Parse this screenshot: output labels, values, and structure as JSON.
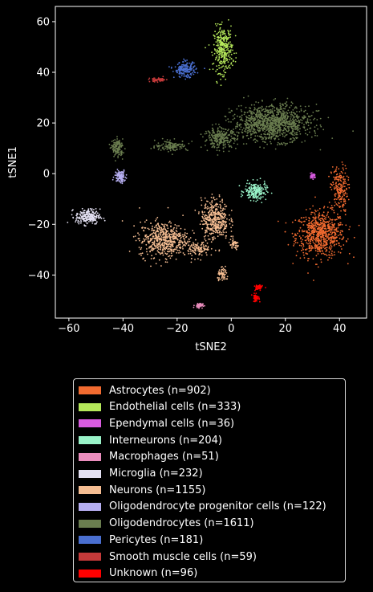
{
  "chart_data": {
    "type": "scatter",
    "xlabel": "tSNE2",
    "ylabel": "tSNE1",
    "xlim": [
      -65,
      50
    ],
    "ylim": [
      -57,
      66
    ],
    "xticks": [
      -60,
      -40,
      -20,
      0,
      20,
      40
    ],
    "yticks": [
      -40,
      -20,
      0,
      20,
      40,
      60
    ],
    "xtick_labels": [
      "−60",
      "−40",
      "−20",
      "0",
      "20",
      "40"
    ],
    "ytick_labels": [
      "−40",
      "−20",
      "0",
      "20",
      "40",
      "60"
    ],
    "grid": false,
    "legend_placement": "below",
    "series": [
      {
        "name": "Astrocytes (n=902)",
        "color": "#f26b30",
        "clusters": [
          {
            "cx": 33,
            "cy": -24,
            "rx": 9,
            "ry": 9,
            "n": 700
          },
          {
            "cx": 40,
            "cy": -6,
            "rx": 3,
            "ry": 9,
            "n": 200
          }
        ]
      },
      {
        "name": "Endothelial cells (n=333)",
        "color": "#b5e85a",
        "clusters": [
          {
            "cx": -3,
            "cy": 49,
            "rx": 3.5,
            "ry": 9,
            "n": 330
          }
        ]
      },
      {
        "name": "Ependymal cells (n=36)",
        "color": "#d95be0",
        "clusters": [
          {
            "cx": 30,
            "cy": -1,
            "rx": 1.2,
            "ry": 1,
            "n": 36
          }
        ]
      },
      {
        "name": "Interneurons (n=204)",
        "color": "#99f2c8",
        "clusters": [
          {
            "cx": 9,
            "cy": -7,
            "rx": 4,
            "ry": 3.5,
            "n": 200
          }
        ]
      },
      {
        "name": "Macrophages (n=51)",
        "color": "#ea8dbd",
        "clusters": [
          {
            "cx": -12,
            "cy": -52,
            "rx": 1.5,
            "ry": 1,
            "n": 50
          }
        ]
      },
      {
        "name": "Microglia (n=232)",
        "color": "#e3e0f2",
        "clusters": [
          {
            "cx": -53,
            "cy": -17,
            "rx": 4.5,
            "ry": 3,
            "n": 230
          }
        ]
      },
      {
        "name": "Neurons (n=1155)",
        "color": "#f5bd92",
        "clusters": [
          {
            "cx": -25,
            "cy": -26,
            "rx": 9,
            "ry": 7,
            "n": 550
          },
          {
            "cx": -6,
            "cy": -18,
            "rx": 5,
            "ry": 8,
            "n": 400
          },
          {
            "cx": -12,
            "cy": -30,
            "rx": 4,
            "ry": 3,
            "n": 100
          },
          {
            "cx": -3,
            "cy": -40,
            "rx": 2,
            "ry": 2.5,
            "n": 60
          },
          {
            "cx": 1,
            "cy": -28,
            "rx": 2,
            "ry": 2,
            "n": 45
          }
        ]
      },
      {
        "name": "Oligodendrocyte progenitor cells (n=122)",
        "color": "#b6aef0",
        "clusters": [
          {
            "cx": -41,
            "cy": -1,
            "rx": 2,
            "ry": 2.5,
            "n": 120
          }
        ]
      },
      {
        "name": "Oligodendrocytes (n=1611)",
        "color": "#6a7d4f",
        "clusters": [
          {
            "cx": 15,
            "cy": 20,
            "rx": 14,
            "ry": 7,
            "n": 1100
          },
          {
            "cx": -4,
            "cy": 14,
            "rx": 6,
            "ry": 4,
            "n": 250
          },
          {
            "cx": -22,
            "cy": 11,
            "rx": 6,
            "ry": 2,
            "n": 130
          },
          {
            "cx": -42,
            "cy": 10,
            "rx": 2,
            "ry": 3.5,
            "n": 131
          }
        ]
      },
      {
        "name": "Pericytes (n=181)",
        "color": "#4a6fd0",
        "clusters": [
          {
            "cx": -17,
            "cy": 41,
            "rx": 4,
            "ry": 3,
            "n": 181
          }
        ]
      },
      {
        "name": "Smooth muscle cells (n=59)",
        "color": "#c53a3a",
        "clusters": [
          {
            "cx": -27,
            "cy": 37,
            "rx": 3,
            "ry": 0.8,
            "n": 59
          }
        ]
      },
      {
        "name": "Unknown (n=96)",
        "color": "#ff0000",
        "clusters": [
          {
            "cx": 10,
            "cy": -45,
            "rx": 1.5,
            "ry": 1.2,
            "n": 50
          },
          {
            "cx": 9,
            "cy": -49,
            "rx": 1.3,
            "ry": 1.5,
            "n": 46
          }
        ]
      }
    ]
  }
}
